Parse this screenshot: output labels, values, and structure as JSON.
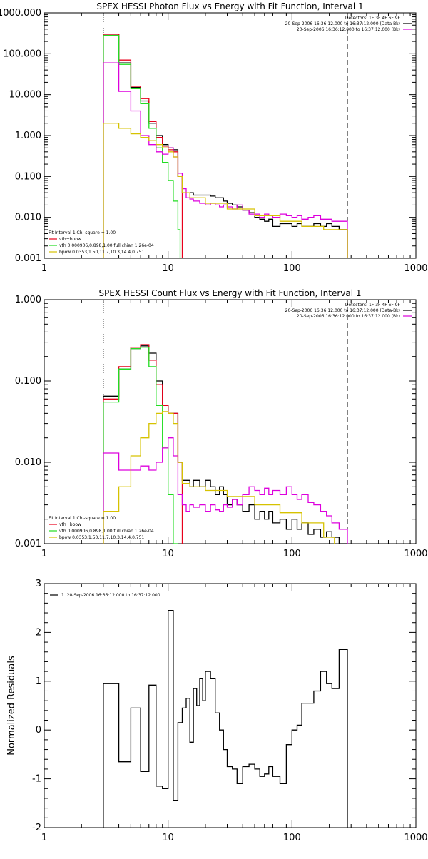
{
  "colors": {
    "black": "#000000",
    "red": "#e8001c",
    "green": "#22dd22",
    "magenta": "#dd00dd",
    "yellow": "#d6c200"
  },
  "chart_data": [
    {
      "type": "line",
      "title": "SPEX HESSI Photon Flux vs Energy with Fit Function, Interval 1",
      "xlabel": "",
      "ylabel": "",
      "xscale": "log",
      "yscale": "log",
      "xlim": [
        1,
        1000
      ],
      "ylim": [
        0.001,
        1000
      ],
      "xticks": [
        "1",
        "10",
        "100",
        "1000"
      ],
      "yticks": [
        "0.001",
        "0.010",
        "0.100",
        "1.000",
        "10.000",
        "100.000",
        "1000.000"
      ],
      "yticks_values": [
        0.001,
        0.01,
        0.1,
        1,
        10,
        100,
        1000
      ],
      "vlines": [
        {
          "x": 3,
          "style": "dotted"
        },
        {
          "x": 280,
          "style": "dashed"
        }
      ],
      "legend_top_right": [
        "Detectors: 1F 3F 4F 6F 9F",
        "20-Sep-2006 16:36:12.000 to 16:37:12.000 (Data-Bk)",
        "20-Sep-2006 16:36:12.000 to 16:37:12.000 (Bk)"
      ],
      "legend_bottom_left": [
        "Fit Interval 1    Chi-square = 1.00",
        "vth+bpow",
        "vth 0.000906,0.898,1.00  full chian 1.26e-04",
        "bpow 0.0353,1.50,11.7,10.3,14.4,0.751"
      ],
      "series": [
        {
          "name": "Data-Bk",
          "color_key": "black",
          "x": [
            3,
            3.5,
            4,
            4.5,
            5,
            5.5,
            6,
            6.5,
            7,
            7.5,
            8,
            8.5,
            9,
            9.5,
            10,
            11,
            12,
            13,
            14,
            15,
            16,
            18,
            20,
            22,
            24,
            26,
            28,
            30,
            33,
            36,
            40,
            45,
            50,
            55,
            60,
            65,
            70,
            80,
            90,
            100,
            110,
            120,
            135,
            150,
            170,
            190,
            210,
            240,
            280
          ],
          "values": [
            300,
            300,
            60,
            60,
            15,
            15,
            7,
            7,
            2,
            2,
            1,
            1,
            0.6,
            0.6,
            0.5,
            0.45,
            0.1,
            0.04,
            0.04,
            0.04,
            0.035,
            0.035,
            0.035,
            0.033,
            0.03,
            0.03,
            0.025,
            0.022,
            0.02,
            0.018,
            0.015,
            0.013,
            0.01,
            0.009,
            0.008,
            0.009,
            0.006,
            0.007,
            0.007,
            0.006,
            0.007,
            0.006,
            0.006,
            0.007,
            0.006,
            0.007,
            0.006,
            0.005,
            0.005
          ]
        },
        {
          "name": "vth+bpow",
          "color_key": "red",
          "x": [
            3,
            3.5,
            4,
            4.5,
            5,
            5.5,
            6,
            6.5,
            7,
            7.5,
            8,
            8.5,
            9,
            9.5,
            10,
            11,
            12,
            13
          ],
          "values": [
            300,
            300,
            70,
            70,
            16,
            16,
            8,
            8,
            2.2,
            2.2,
            0.9,
            0.9,
            0.55,
            0.55,
            0.45,
            0.4,
            0.1,
            0.04
          ]
        },
        {
          "name": "vth",
          "color_key": "green",
          "x": [
            3,
            3.5,
            4,
            4.5,
            5,
            5.5,
            6,
            6.5,
            7,
            7.5,
            8,
            8.5,
            9,
            9.5,
            10,
            11,
            12,
            12.5,
            13
          ],
          "values": [
            280,
            280,
            55,
            55,
            14,
            14,
            6,
            6,
            1.5,
            1.5,
            0.5,
            0.5,
            0.22,
            0.22,
            0.08,
            0.025,
            0.005,
            0.001,
            0.001
          ]
        },
        {
          "name": "Bk",
          "color_key": "magenta",
          "x": [
            3,
            3.5,
            4,
            4.5,
            5,
            5.5,
            6,
            6.5,
            7,
            7.5,
            8,
            8.5,
            9,
            9.5,
            10,
            11,
            12,
            13,
            14,
            15,
            16,
            18,
            20,
            22,
            24,
            26,
            28,
            30,
            33,
            36,
            40,
            45,
            50,
            55,
            60,
            65,
            70,
            80,
            90,
            100,
            110,
            120,
            135,
            150,
            170,
            190,
            210,
            240,
            280
          ],
          "values": [
            60,
            60,
            12,
            12,
            4,
            4,
            1,
            1,
            0.6,
            0.6,
            0.4,
            0.4,
            0.35,
            0.35,
            0.5,
            0.3,
            0.12,
            0.05,
            0.03,
            0.028,
            0.025,
            0.022,
            0.02,
            0.022,
            0.02,
            0.018,
            0.02,
            0.018,
            0.016,
            0.02,
            0.015,
            0.012,
            0.012,
            0.01,
            0.012,
            0.011,
            0.01,
            0.012,
            0.011,
            0.01,
            0.011,
            0.009,
            0.01,
            0.011,
            0.009,
            0.009,
            0.008,
            0.008,
            0.008
          ]
        },
        {
          "name": "bpow",
          "color_key": "yellow",
          "x": [
            3,
            3.5,
            4,
            4.5,
            5,
            5.5,
            6,
            6.5,
            7,
            7.5,
            8,
            8.5,
            9,
            9.5,
            10,
            11,
            12,
            13,
            15,
            20,
            30,
            50,
            80,
            120,
            180,
            280
          ],
          "values": [
            2,
            2,
            1.5,
            1.5,
            1.1,
            1.1,
            0.9,
            0.9,
            0.75,
            0.75,
            0.6,
            0.6,
            0.5,
            0.5,
            0.4,
            0.3,
            0.1,
            0.04,
            0.03,
            0.022,
            0.016,
            0.011,
            0.008,
            0.006,
            0.005,
            0.004
          ]
        }
      ]
    },
    {
      "type": "line",
      "title": "SPEX HESSI Count Flux vs Energy with Fit Function, Interval 1",
      "xlabel": "",
      "ylabel": "",
      "xscale": "log",
      "yscale": "log",
      "xlim": [
        1,
        1000
      ],
      "ylim": [
        0.001,
        1
      ],
      "xticks": [
        "1",
        "10",
        "100",
        "1000"
      ],
      "yticks": [
        "0.001",
        "0.010",
        "0.100",
        "1.000"
      ],
      "yticks_values": [
        0.001,
        0.01,
        0.1,
        1
      ],
      "vlines": [
        {
          "x": 3,
          "style": "dotted"
        },
        {
          "x": 280,
          "style": "dashed"
        }
      ],
      "legend_top_right": [
        "Detectors: 1F 3F 4F 6F 9F",
        "20-Sep-2006 16:36:12.000 to 16:37:12.000 (Data-Bk)",
        "20-Sep-2006 16:36:12.000 to 16:37:12.000 (Bk)"
      ],
      "legend_bottom_left": [
        "Fit Interval 1    Chi-square = 1.00",
        "vth+bpow",
        "vth 0.000906,0.898,1.00  full chian 1.26e-04",
        "bpow 0.0353,1.50,11.7,10.3,14.4,0.751"
      ],
      "series": [
        {
          "name": "Data-Bk",
          "color_key": "black",
          "x": [
            3,
            3.5,
            4,
            4.5,
            5,
            5.5,
            6,
            6.5,
            7,
            7.5,
            8,
            8.5,
            9,
            9.5,
            10,
            11,
            12,
            13,
            14,
            15,
            16,
            18,
            20,
            22,
            24,
            26,
            28,
            30,
            33,
            36,
            40,
            45,
            50,
            55,
            60,
            65,
            70,
            80,
            90,
            100,
            110,
            120,
            135,
            150,
            170,
            190,
            210,
            240,
            280
          ],
          "values": [
            0.065,
            0.065,
            0.14,
            0.14,
            0.25,
            0.25,
            0.27,
            0.27,
            0.22,
            0.22,
            0.1,
            0.1,
            0.05,
            0.05,
            0.04,
            0.04,
            0.01,
            0.006,
            0.006,
            0.005,
            0.006,
            0.005,
            0.006,
            0.005,
            0.004,
            0.005,
            0.004,
            0.003,
            0.0035,
            0.003,
            0.0025,
            0.003,
            0.002,
            0.0025,
            0.002,
            0.0025,
            0.0018,
            0.002,
            0.0015,
            0.002,
            0.0015,
            0.0018,
            0.0013,
            0.0015,
            0.0012,
            0.0014,
            0.0012,
            0.001,
            0.001
          ]
        },
        {
          "name": "vth+bpow",
          "color_key": "red",
          "x": [
            3,
            3.5,
            4,
            4.5,
            5,
            5.5,
            6,
            6.5,
            7,
            7.5,
            8,
            8.5,
            9,
            9.5,
            10,
            11,
            12,
            13
          ],
          "values": [
            0.06,
            0.06,
            0.15,
            0.15,
            0.26,
            0.26,
            0.28,
            0.28,
            0.18,
            0.18,
            0.09,
            0.09,
            0.05,
            0.05,
            0.04,
            0.04,
            0.01,
            0.006
          ]
        },
        {
          "name": "vth",
          "color_key": "green",
          "x": [
            3,
            3.5,
            4,
            4.5,
            5,
            5.5,
            6,
            6.5,
            7,
            7.5,
            8,
            8.5,
            9,
            9.5,
            10,
            11,
            11.5,
            12
          ],
          "values": [
            0.055,
            0.055,
            0.14,
            0.14,
            0.25,
            0.25,
            0.26,
            0.26,
            0.15,
            0.15,
            0.05,
            0.05,
            0.015,
            0.015,
            0.004,
            0.001,
            0.001,
            0.001
          ]
        },
        {
          "name": "Bk",
          "color_key": "magenta",
          "x": [
            3,
            3.5,
            4,
            4.5,
            5,
            5.5,
            6,
            6.5,
            7,
            7.5,
            8,
            8.5,
            9,
            9.5,
            10,
            11,
            12,
            13,
            14,
            15,
            16,
            18,
            20,
            22,
            24,
            26,
            28,
            30,
            33,
            36,
            40,
            45,
            50,
            55,
            60,
            65,
            70,
            80,
            90,
            100,
            110,
            120,
            135,
            150,
            170,
            190,
            210,
            240,
            280
          ],
          "values": [
            0.013,
            0.013,
            0.008,
            0.008,
            0.008,
            0.008,
            0.009,
            0.009,
            0.008,
            0.008,
            0.01,
            0.01,
            0.015,
            0.015,
            0.02,
            0.012,
            0.004,
            0.003,
            0.0025,
            0.003,
            0.0028,
            0.003,
            0.0025,
            0.003,
            0.0026,
            0.0025,
            0.003,
            0.0028,
            0.0035,
            0.003,
            0.004,
            0.005,
            0.0045,
            0.004,
            0.0048,
            0.004,
            0.0045,
            0.004,
            0.005,
            0.004,
            0.0035,
            0.004,
            0.0032,
            0.003,
            0.0025,
            0.0022,
            0.0018,
            0.0015,
            0.0012
          ]
        },
        {
          "name": "bpow",
          "color_key": "yellow",
          "x": [
            3,
            3.5,
            4,
            4.5,
            5,
            5.5,
            6,
            6.5,
            7,
            7.5,
            8,
            8.5,
            9,
            9.5,
            10,
            11,
            12,
            13,
            15,
            20,
            30,
            50,
            80,
            120,
            180,
            220
          ],
          "values": [
            0.0025,
            0.0025,
            0.005,
            0.005,
            0.012,
            0.012,
            0.02,
            0.02,
            0.03,
            0.03,
            0.04,
            0.04,
            0.042,
            0.042,
            0.04,
            0.03,
            0.01,
            0.0055,
            0.005,
            0.0045,
            0.0038,
            0.003,
            0.0024,
            0.0018,
            0.0012,
            0.001
          ]
        }
      ]
    },
    {
      "type": "line",
      "title": "",
      "xlabel": "",
      "ylabel": "Normalized Residuals",
      "xscale": "log",
      "yscale": "linear",
      "xlim": [
        1,
        1000
      ],
      "ylim": [
        -2,
        3
      ],
      "xticks": [
        "1",
        "10",
        "100",
        "1000"
      ],
      "yticks": [
        "-2",
        "-1",
        "0",
        "1",
        "2",
        "3"
      ],
      "yticks_values": [
        -2,
        -1,
        0,
        1,
        2,
        3
      ],
      "legend_top_left": [
        "1. 20-Sep-2006 16:36:12.000 to 16:37:12.000"
      ],
      "series": [
        {
          "name": "1. 20-Sep-2006 16:36:12.000 to 16:37:12.000",
          "color_key": "black",
          "x": [
            3,
            4,
            5,
            6,
            7,
            8,
            9,
            10,
            11,
            12,
            13,
            14,
            15,
            16,
            17,
            18,
            19,
            20,
            22,
            24,
            26,
            28,
            30,
            33,
            36,
            40,
            45,
            50,
            55,
            60,
            65,
            70,
            80,
            90,
            100,
            110,
            120,
            135,
            150,
            170,
            190,
            210,
            240,
            280
          ],
          "values": [
            0.95,
            -0.65,
            0.45,
            -0.85,
            0.92,
            -1.15,
            -1.2,
            2.45,
            -1.45,
            0.15,
            0.45,
            0.65,
            -0.25,
            0.85,
            0.5,
            1.05,
            0.6,
            1.2,
            1.05,
            0.35,
            0.0,
            -0.4,
            -0.75,
            -0.8,
            -1.1,
            -0.75,
            -0.7,
            -0.8,
            -0.95,
            -0.9,
            -0.75,
            -0.95,
            -1.1,
            -0.3,
            0.0,
            0.1,
            0.55,
            0.55,
            0.8,
            1.2,
            0.95,
            0.85,
            1.65,
            -2.0
          ]
        }
      ]
    }
  ]
}
